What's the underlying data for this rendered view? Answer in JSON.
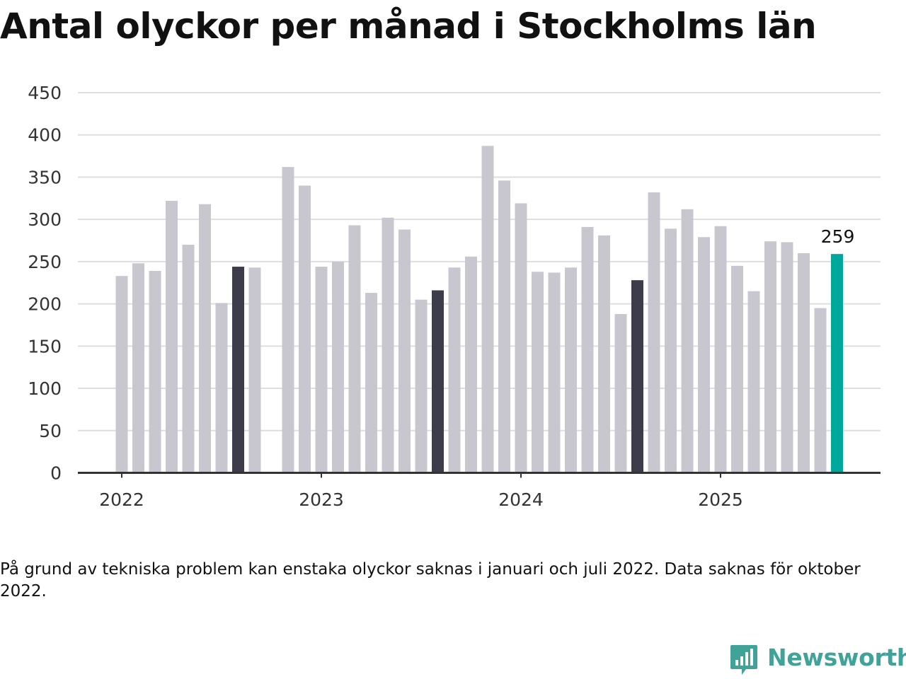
{
  "title": "Antal olyckor per månad i Stockholms län",
  "chart_data": {
    "type": "bar",
    "y_ticks": [
      0,
      50,
      100,
      150,
      200,
      250,
      300,
      350,
      400,
      450
    ],
    "ylim": [
      0,
      450
    ],
    "x_tick_labels": [
      "2022",
      "2023",
      "2024",
      "2025"
    ],
    "grid": true,
    "colors": {
      "default": "#c8c7cf",
      "highlight": "#3d3c4b",
      "latest": "#00a79d"
    },
    "months": [
      "2022-01",
      "2022-02",
      "2022-03",
      "2022-04",
      "2022-05",
      "2022-06",
      "2022-07",
      "2022-08",
      "2022-09",
      "2022-10",
      "2022-11",
      "2022-12",
      "2023-01",
      "2023-02",
      "2023-03",
      "2023-04",
      "2023-05",
      "2023-06",
      "2023-07",
      "2023-08",
      "2023-09",
      "2023-10",
      "2023-11",
      "2023-12",
      "2024-01",
      "2024-02",
      "2024-03",
      "2024-04",
      "2024-05",
      "2024-06",
      "2024-07",
      "2024-08",
      "2024-09",
      "2024-10",
      "2024-11",
      "2024-12",
      "2025-01",
      "2025-02",
      "2025-03",
      "2025-04",
      "2025-05",
      "2025-06",
      "2025-07",
      "2025-08"
    ],
    "values": [
      233,
      248,
      239,
      322,
      270,
      318,
      201,
      244,
      243,
      null,
      362,
      340,
      244,
      250,
      293,
      213,
      302,
      288,
      205,
      216,
      243,
      256,
      387,
      346,
      319,
      238,
      237,
      243,
      291,
      281,
      188,
      228,
      332,
      289,
      312,
      279,
      292,
      245,
      215,
      274,
      273,
      260,
      195,
      259
    ],
    "highlight_months": [
      "2022-08",
      "2023-08",
      "2024-08"
    ],
    "latest_month": "2025-08",
    "data_labels": [
      {
        "month": "2025-08",
        "text": "259"
      }
    ]
  },
  "footnote": "På grund av tekniska problem kan enstaka olyckor saknas i januari och juli 2022. Data saknas för oktober 2022.",
  "logo": {
    "text": "Newsworthy",
    "icon": "newsworthy-logo-icon",
    "color": "#3fa39a"
  }
}
